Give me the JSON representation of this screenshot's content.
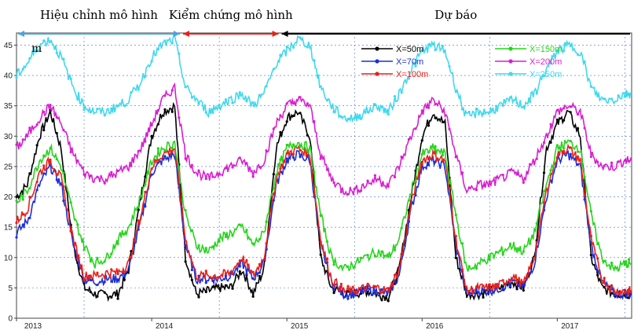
{
  "chart_data": {
    "type": "line",
    "ylabel": "m",
    "ylim": [
      0,
      47
    ],
    "xlim": [
      2013.0,
      2017.55
    ],
    "grid": true,
    "legend_position": "top-right",
    "y_ticks": [
      "0",
      "5",
      "10",
      "15",
      "20",
      "25",
      "30",
      "35",
      "40",
      "45"
    ],
    "x_ticks": [
      {
        "x": 2013.0,
        "label": "2013"
      },
      {
        "x": 2014.0,
        "label": "2014"
      },
      {
        "x": 2015.0,
        "label": "2015"
      },
      {
        "x": 2016.0,
        "label": "2016"
      },
      {
        "x": 2017.0,
        "label": "2017"
      }
    ],
    "periods": [
      {
        "label": "Hiệu chỉnh mô hình",
        "start": 2013.0,
        "end": 2014.22,
        "color": "#4aa3df"
      },
      {
        "label": "Kiểm chứng mô hình",
        "start": 2014.22,
        "end": 2014.95,
        "color": "#e8201a"
      },
      {
        "label": "Dự báo",
        "start": 2014.95,
        "end": 2017.55,
        "color": "#000000"
      }
    ],
    "x": [
      2013.0,
      2013.08,
      2013.17,
      2013.25,
      2013.33,
      2013.42,
      2013.5,
      2013.58,
      2013.67,
      2013.75,
      2013.83,
      2013.92,
      2014.0,
      2014.08,
      2014.17,
      2014.25,
      2014.33,
      2014.42,
      2014.5,
      2014.58,
      2014.67,
      2014.75,
      2014.83,
      2014.92,
      2015.0,
      2015.08,
      2015.17,
      2015.25,
      2015.33,
      2015.42,
      2015.5,
      2015.58,
      2015.67,
      2015.75,
      2015.83,
      2015.92,
      2016.0,
      2016.08,
      2016.17,
      2016.25,
      2016.33,
      2016.42,
      2016.5,
      2016.58,
      2016.67,
      2016.75,
      2016.83,
      2016.92,
      2017.0,
      2017.08,
      2017.17,
      2017.25,
      2017.33,
      2017.42,
      2017.5,
      2017.55
    ],
    "series": [
      {
        "name": "X=50m",
        "color": "#000000",
        "marker": "x",
        "values": [
          20,
          22,
          30,
          34,
          28,
          12,
          5,
          4,
          3.8,
          4,
          8,
          20,
          30,
          34,
          35,
          10,
          4,
          4.5,
          5,
          5,
          8,
          4,
          8,
          28,
          33,
          34,
          30,
          10,
          5,
          4,
          4,
          4.5,
          4,
          3.5,
          8,
          20,
          30,
          34,
          32,
          10,
          4,
          4,
          4.5,
          5,
          6,
          5,
          10,
          28,
          32,
          34,
          30,
          10,
          5,
          4,
          4,
          4
        ]
      },
      {
        "name": "X=70m",
        "color": "#1c2fd6",
        "marker": "circle",
        "values": [
          14,
          16,
          22,
          25,
          22,
          12,
          6.5,
          6,
          6.5,
          6.5,
          8,
          16,
          24,
          26,
          27,
          12,
          6.5,
          6.5,
          6.5,
          7,
          9,
          6.5,
          9,
          22,
          26,
          27,
          26,
          12,
          6,
          4,
          4,
          4.5,
          4.5,
          4,
          7,
          18,
          25,
          26,
          25,
          12,
          4,
          4.5,
          4.5,
          5,
          6,
          5,
          9,
          20,
          26,
          27,
          25,
          12,
          6,
          4,
          4,
          4
        ]
      },
      {
        "name": "X=100m",
        "color": "#e8201a",
        "marker": "square",
        "values": [
          16,
          18,
          24,
          26,
          23,
          13,
          7,
          7,
          7.5,
          7.5,
          9,
          17,
          25,
          27,
          28,
          13,
          7,
          7,
          7,
          7.5,
          10,
          7,
          10,
          23,
          27,
          28,
          27,
          13,
          6.5,
          4.5,
          4.5,
          5,
          5,
          4.5,
          8,
          19,
          26,
          27,
          26,
          13,
          4.5,
          5,
          5,
          5.5,
          7,
          5.5,
          10,
          21,
          27,
          28,
          26,
          13,
          6.5,
          4.5,
          4.5,
          4.5
        ]
      },
      {
        "name": "X=150m",
        "color": "#26d41c",
        "marker": "diamond",
        "values": [
          19,
          21,
          26,
          28,
          25,
          17,
          12,
          9,
          10,
          13,
          15,
          20,
          26,
          28,
          29,
          17,
          12,
          11,
          13,
          14,
          15,
          12,
          14,
          24,
          28,
          29,
          28,
          17,
          10,
          8,
          9,
          10,
          11,
          10,
          13,
          21,
          27,
          28,
          27,
          17,
          8,
          9,
          10,
          11,
          12,
          11,
          14,
          22,
          28,
          29,
          28,
          17,
          10,
          8,
          9,
          9
        ]
      },
      {
        "name": "X=200m",
        "color": "#d81fd0",
        "marker": "triangle",
        "values": [
          28,
          30,
          33,
          35,
          32,
          27,
          24,
          23,
          23,
          24,
          25,
          28,
          32,
          36,
          38,
          27,
          24,
          23,
          24,
          25,
          26,
          24,
          26,
          32,
          35,
          36,
          35,
          27,
          23,
          21,
          21,
          22,
          23,
          22,
          25,
          30,
          34,
          36,
          34,
          27,
          21,
          22,
          22,
          23,
          24,
          23,
          26,
          30,
          34,
          35,
          34,
          27,
          25,
          25,
          26,
          26
        ]
      },
      {
        "name": "X=250m",
        "color": "#3fd8ee",
        "marker": "star",
        "values": [
          40,
          42,
          45,
          46,
          43,
          38,
          35,
          34,
          34,
          35,
          36,
          39,
          43,
          45,
          46,
          38,
          36,
          34,
          35,
          36,
          37,
          35,
          37,
          42,
          44,
          46,
          45,
          38,
          35,
          33,
          33,
          34,
          35,
          34,
          37,
          41,
          44,
          45,
          44,
          38,
          33,
          34,
          34,
          35,
          36,
          35,
          37,
          41,
          44,
          45,
          44,
          38,
          36,
          36,
          37,
          37
        ]
      }
    ]
  }
}
